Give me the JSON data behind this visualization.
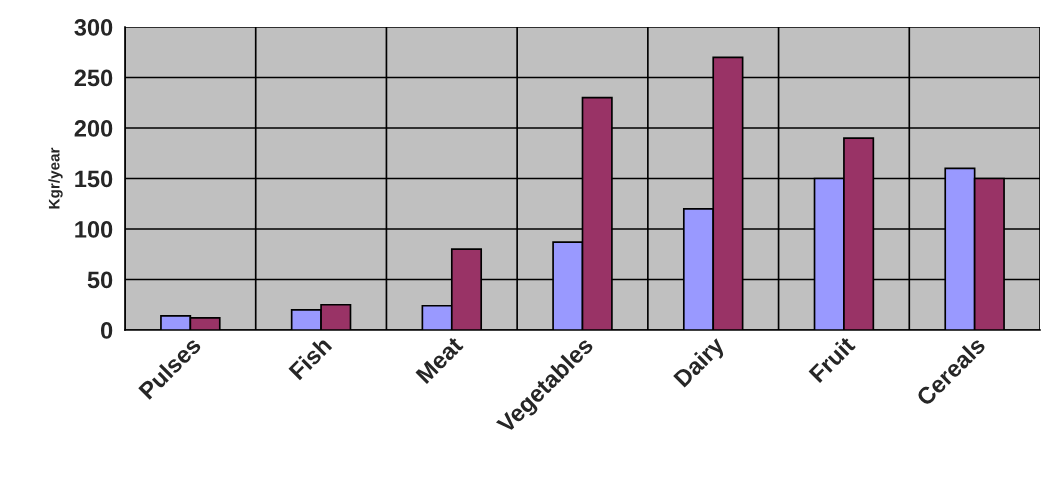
{
  "chart_data": {
    "type": "bar",
    "ylabel": "Kgr/year",
    "categories": [
      "Pulses",
      "Fish",
      "Meat",
      "Vegetables",
      "Dairy",
      "Fruit",
      "Cereals"
    ],
    "series": [
      {
        "color": "#9999ff",
        "values": [
          14,
          20,
          24,
          87,
          120,
          150,
          160
        ]
      },
      {
        "color": "#993366",
        "values": [
          12,
          25,
          80,
          230,
          270,
          190,
          150
        ]
      }
    ],
    "ylim": [
      0,
      300
    ],
    "yticks": [
      0,
      50,
      100,
      150,
      200,
      250,
      300
    ],
    "grid": true
  }
}
